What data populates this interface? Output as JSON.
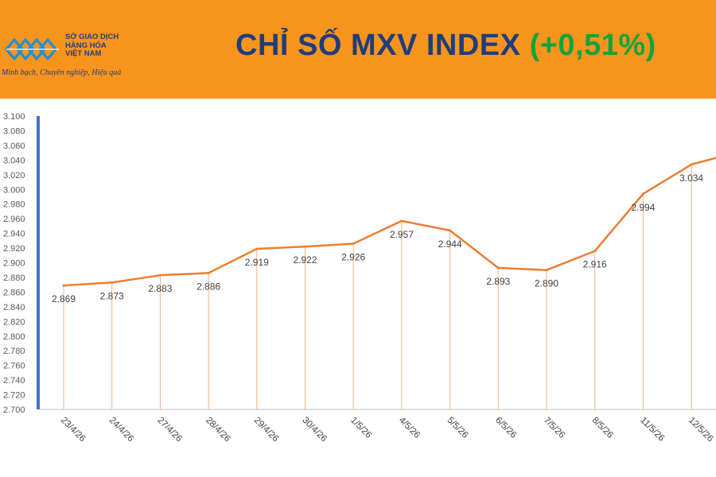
{
  "header": {
    "logo": {
      "icon": "mxv-logo-icon",
      "name_lines": [
        "SỞ GIAO DỊCH",
        "HÀNG HÓA",
        "VIỆT NAM"
      ],
      "slogan": "Minh bạch, Chuyên nghiệp, Hiệu quả"
    },
    "title": "CHỈ SỐ MXV INDEX",
    "change": "(+0,51%)"
  },
  "colors": {
    "header_bg": "#f7941d",
    "title": "#1f3d7a",
    "change": "#12a33b",
    "line": "#ed7d31",
    "axis_bar": "#4472c4"
  },
  "chart_data": {
    "type": "line",
    "title": "CHỈ SỐ MXV INDEX (+0,51%)",
    "categories": [
      "23/4/26",
      "24/4/26",
      "27/4/26",
      "28/4/26",
      "29/4/26",
      "30/4/26",
      "1/5/26",
      "4/5/26",
      "5/5/26",
      "6/5/26",
      "7/5/26",
      "8/5/26",
      "11/5/26",
      "12/5/26"
    ],
    "values": [
      2869,
      2873,
      2883,
      2886,
      2919,
      2922,
      2926,
      2957,
      2944,
      2893,
      2890,
      2916,
      2994,
      3034
    ],
    "labels": [
      "2.869",
      "2.873",
      "2.883",
      "2.886",
      "2.919",
      "2.922",
      "2.926",
      "2.957",
      "2.944",
      "2.893",
      "2.890",
      "2.916",
      "2.994",
      "3.034"
    ],
    "trailing_value": 3043,
    "ylim": [
      2700,
      3100
    ],
    "yticks": [
      "2.700",
      "2.720",
      "2.740",
      "2.760",
      "2.780",
      "2.800",
      "2.820",
      "2.840",
      "2.860",
      "2.880",
      "2.900",
      "2.920",
      "2.940",
      "2.960",
      "2.980",
      "3.000",
      "3.020",
      "3.040",
      "3.060",
      "3.080",
      "3.100"
    ],
    "drop_lines": true,
    "grid": false,
    "legend": "none"
  }
}
